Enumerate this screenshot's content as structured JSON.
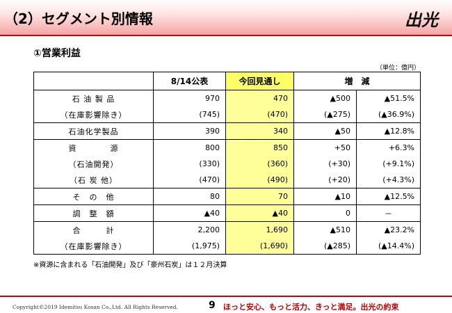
{
  "header": {
    "title": "（2）セグメント別情報",
    "logo_text": "出光"
  },
  "section": {
    "heading": "①営業利益",
    "unit_note": "（単位：億円）"
  },
  "table": {
    "columns": [
      "",
      "8/14公表",
      "今回見通し",
      "増　減"
    ],
    "rows": [
      {
        "label": "石 油 製 品",
        "prev": "970",
        "curr": "470",
        "diff": "▲500",
        "pct": "▲51.5%"
      },
      {
        "label": "（在庫影響除き）",
        "prev": "(745)",
        "curr": "(470)",
        "diff": "(▲275)",
        "pct": "(▲36.9%)"
      },
      {
        "label": "石油化学製品",
        "prev": "390",
        "curr": "340",
        "diff": "▲50",
        "pct": "▲12.8%"
      },
      {
        "label": "資　　　　源",
        "prev": "800",
        "curr": "850",
        "diff": "+50",
        "pct": "+6.3%"
      },
      {
        "label": "（石油開発）",
        "prev": "(330)",
        "curr": "(360)",
        "diff": "(+30)",
        "pct": "(+9.1%)"
      },
      {
        "label": "（石 炭 他）",
        "prev": "(470)",
        "curr": "(490)",
        "diff": "(+20)",
        "pct": "(+4.3%)"
      },
      {
        "label": "そ　の　他",
        "prev": "80",
        "curr": "70",
        "diff": "▲10",
        "pct": "▲12.5%"
      },
      {
        "label": "調　整　額",
        "prev": "▲40",
        "curr": "▲40",
        "diff": "0",
        "pct": "－"
      },
      {
        "label": "合　　　計",
        "prev": "2,200",
        "curr": "1,690",
        "diff": "▲510",
        "pct": "▲23.2%"
      },
      {
        "label": "（在庫影響除き）",
        "prev": "(1,975)",
        "curr": "(1,690)",
        "diff": "(▲285)",
        "pct": "(▲14.4%)"
      }
    ]
  },
  "footnote": "※資源に含まれる「石油開発」及び「豪州石炭」は１２月決算",
  "footer": {
    "copyright": "Copyright©2019 Idemitsu Kosan Co.,Ltd. All Rights Reserved.",
    "page_number": "9",
    "slogan": "ほっと安心、もっと活力、きっと満足。出光の約束"
  },
  "colors": {
    "highlight": "#ffff99",
    "brand_red": "#d40000"
  }
}
